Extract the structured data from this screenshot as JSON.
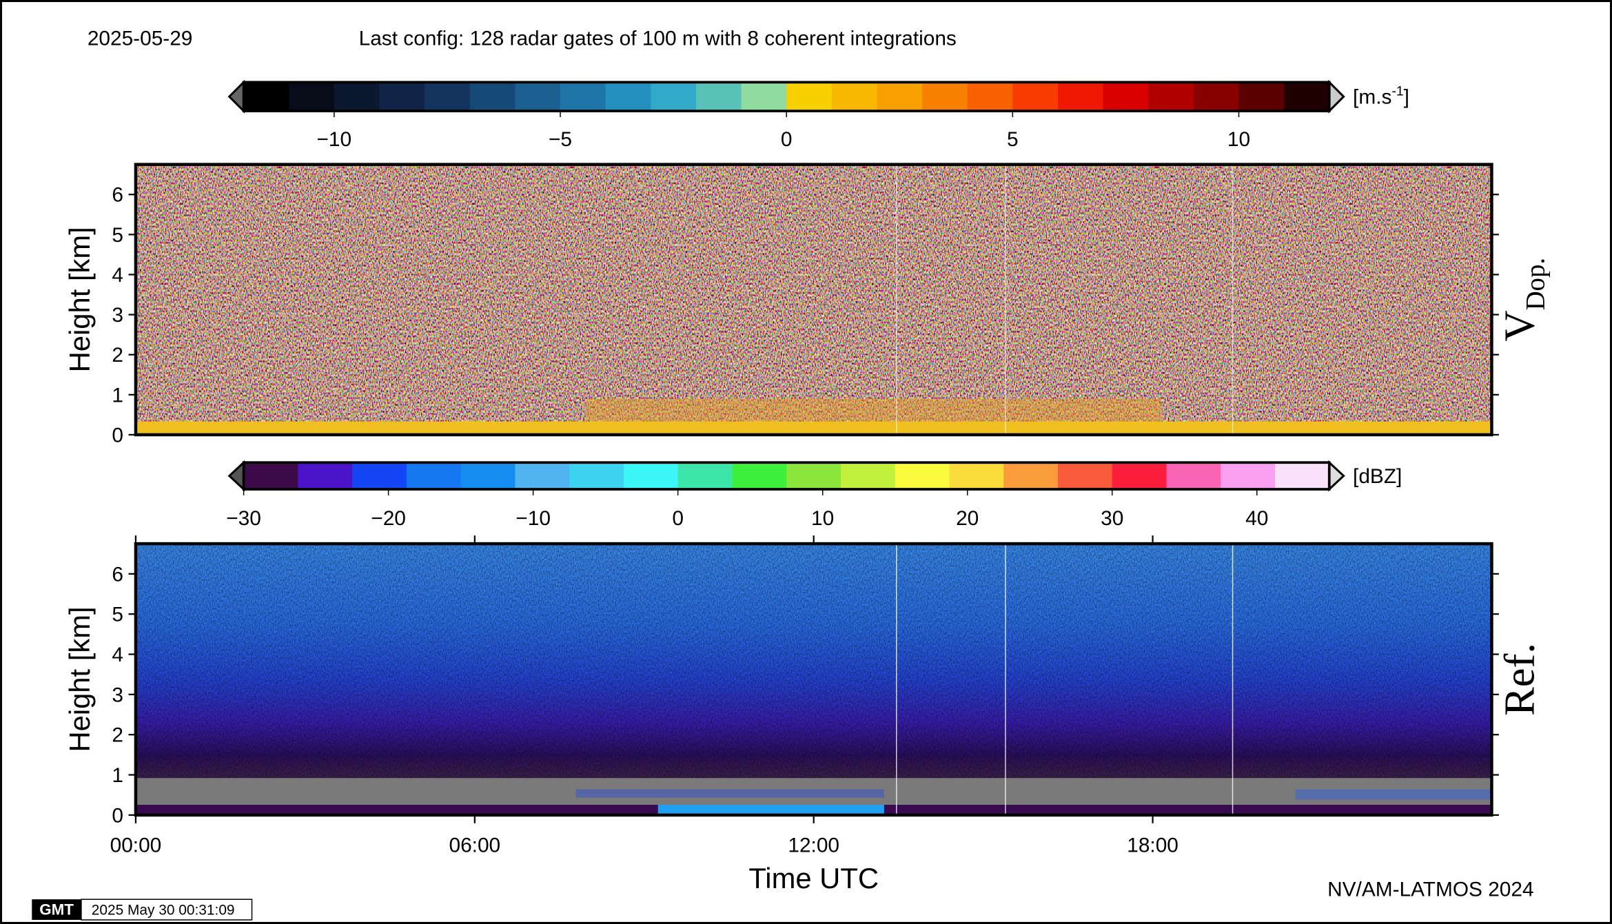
{
  "header": {
    "date": "2025-05-29",
    "config": "Last config: 128 radar gates of 100 m with 8 coherent integrations"
  },
  "chart_data": [
    {
      "type": "heatmap",
      "colorbar": {
        "lim": [
          -12,
          12
        ],
        "ticks": [
          {
            "value": -10,
            "label": "−10"
          },
          {
            "value": -5,
            "label": "−5"
          },
          0,
          5,
          10
        ],
        "unit": "[m.s",
        "unit_sup": "-1",
        "unit_end": "]",
        "colors": [
          "#000000",
          "#080c18",
          "#0c1830",
          "#102448",
          "#12345f",
          "#154a78",
          "#1a6090",
          "#1e76a8",
          "#2490c0",
          "#30aac8",
          "#58c2b8",
          "#90dca0",
          "#f8d000",
          "#f8b800",
          "#f8a000",
          "#f88000",
          "#f86000",
          "#f83c00",
          "#f01800",
          "#d80000",
          "#b00000",
          "#880000",
          "#5a0000",
          "#200000"
        ]
      },
      "ylabel": "Height [km]",
      "side_label": "V",
      "side_label_sub": "Dop.",
      "ylim": [
        0,
        6.75
      ],
      "yticks": [
        0,
        1,
        2,
        3,
        4,
        5,
        6
      ]
    },
    {
      "type": "heatmap",
      "colorbar": {
        "lim": [
          -30,
          45
        ],
        "ticks": [
          {
            "value": -30,
            "label": "−30"
          },
          {
            "value": -20,
            "label": "−20"
          },
          {
            "value": -10,
            "label": "−10"
          },
          0,
          10,
          20,
          30,
          40
        ],
        "unit": "[dBZ]",
        "colors": [
          "#3c0a46",
          "#4b14c8",
          "#1446f5",
          "#1478f0",
          "#148cf0",
          "#50b4f0",
          "#3cd2f0",
          "#3cf5f5",
          "#3ce6aa",
          "#3cf03c",
          "#8ce63c",
          "#c3f03c",
          "#fafa3c",
          "#fadc3c",
          "#fa9b3c",
          "#fa5a3c",
          "#fa1e3c",
          "#fa64b4",
          "#faa0f0",
          "#fae1fa"
        ]
      },
      "ylabel": "Height [km]",
      "side_label": "Ref.",
      "ylim": [
        0,
        6.75
      ],
      "yticks": [
        0,
        1,
        2,
        3,
        4,
        5,
        6
      ],
      "xlabel": "Time UTC",
      "xlim": [
        0,
        24
      ],
      "xticks": [
        {
          "value": 0,
          "label": "00:00"
        },
        {
          "value": 6,
          "label": "06:00"
        },
        {
          "value": 12,
          "label": "12:00"
        },
        {
          "value": 18,
          "label": "18:00"
        }
      ]
    }
  ],
  "footer": {
    "credit": "NV/AM-LATMOS 2024",
    "logo": "GMT",
    "timestamp": "2025 May 30 00:31:09"
  }
}
